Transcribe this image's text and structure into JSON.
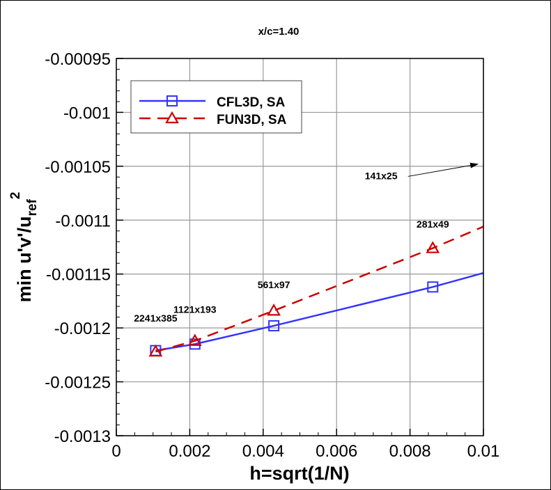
{
  "chart_data": {
    "type": "line",
    "title": "x/c=1.40",
    "xlabel": "h=sqrt(1/N)",
    "ylabel": {
      "main": "min u'v'/u",
      "subscript": "ref",
      "superscript": "2"
    },
    "xlim": [
      0,
      0.01
    ],
    "ylim": [
      -0.0013,
      -0.00095
    ],
    "xticks": [
      0,
      0.002,
      0.004,
      0.006,
      0.008,
      0.01
    ],
    "xtick_labels": [
      "0",
      "0.002",
      "0.004",
      "0.006",
      "0.008",
      "0.01"
    ],
    "yticks": [
      -0.00095,
      -0.001,
      -0.00105,
      -0.0011,
      -0.00115,
      -0.0012,
      -0.00125,
      -0.0013
    ],
    "ytick_labels": [
      "-0.00095",
      "-0.001",
      "-0.00105",
      "-0.0011",
      "-0.00115",
      "-0.0012",
      "-0.00125",
      "-0.0013"
    ],
    "grid": true,
    "legend_position": "top-left",
    "series": [
      {
        "name": "CFL3D, SA",
        "color": "#3333ff",
        "line": "solid",
        "marker": "square",
        "x": [
          0.00107,
          0.00214,
          0.00429,
          0.00862
        ],
        "y": [
          -0.001221,
          -0.001215,
          -0.001198,
          -0.001162
        ],
        "line_extends_to": {
          "x": 0.01,
          "y": -0.001149
        }
      },
      {
        "name": "FUN3D, SA",
        "color": "#cc0000",
        "line": "dashed",
        "marker": "triangle",
        "x": [
          0.00107,
          0.00214,
          0.00429,
          0.00862
        ],
        "y": [
          -0.001222,
          -0.001212,
          -0.001184,
          -0.001126
        ],
        "line_extends_to": {
          "x": 0.01,
          "y": -0.001106
        }
      }
    ],
    "annotations": [
      {
        "text": "2241x385",
        "x": 0.00107,
        "y": -0.001194
      },
      {
        "text": "1121x193",
        "x": 0.00214,
        "y": -0.001186
      },
      {
        "text": "561x97",
        "x": 0.00429,
        "y": -0.001163
      },
      {
        "text": "281x49",
        "x": 0.00862,
        "y": -0.001107
      },
      {
        "text": "141x25",
        "x": 0.00677,
        "y": -0.001062,
        "arrow_to": {
          "x": 0.00985,
          "y": -0.001048
        }
      }
    ]
  }
}
